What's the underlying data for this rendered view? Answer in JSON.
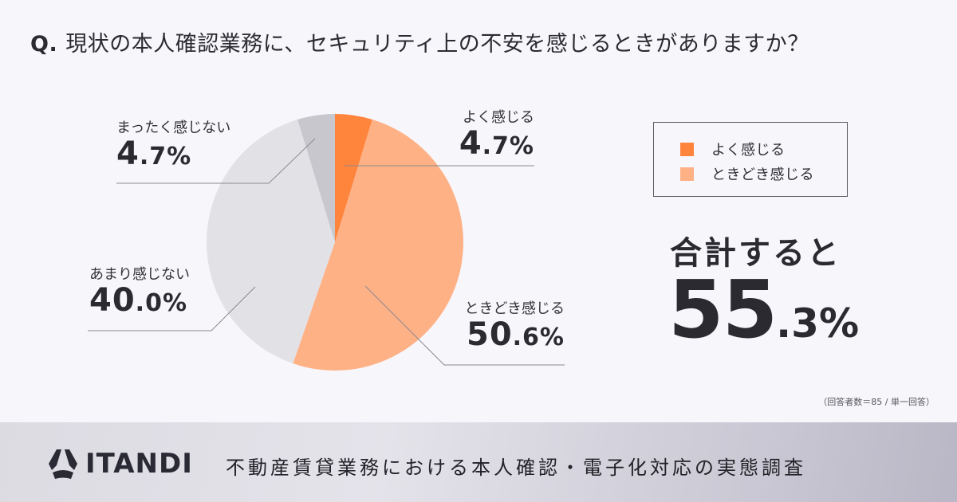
{
  "question": {
    "prefix": "Q.",
    "text": "現状の本人確認業務に、セキュリティ上の不安を感じるときがありますか？"
  },
  "chart_data": {
    "type": "pie",
    "title": "現状の本人確認業務に、セキュリティ上の不安を感じるときがありますか？",
    "categories": [
      "よく感じる",
      "ときどき感じる",
      "あまり感じない",
      "まったく感じない"
    ],
    "values": [
      4.7,
      50.6,
      40.0,
      4.7
    ],
    "colors": [
      "#ff843c",
      "#ffb186",
      "#e2e1e6",
      "#c8c7cd"
    ],
    "unit": "%",
    "start_angle": "12 o'clock, clockwise",
    "legend": [
      "よく感じる",
      "ときどき感じる"
    ],
    "annotation": "合計すると 55.3%",
    "sample_note": "（回答者数＝85 / 単一回答）"
  },
  "labels": {
    "often": {
      "name": "よく感じる",
      "int": "4",
      "dec": ".7%"
    },
    "sometimes": {
      "name": "ときどき感じる",
      "int": "50",
      "dec": ".6%"
    },
    "rarely": {
      "name": "あまり感じない",
      "int": "40",
      "dec": ".0%"
    },
    "never": {
      "name": "まったく感じない",
      "int": "4",
      "dec": ".7%"
    }
  },
  "legend": {
    "items": [
      {
        "label": "よく感じる",
        "color": "#ff843c"
      },
      {
        "label": "ときどき感じる",
        "color": "#ffb186"
      }
    ]
  },
  "total": {
    "label": "合計すると",
    "int": "55",
    "dec": ".3%"
  },
  "note": "（回答者数＝85 / 単一回答）",
  "footer": {
    "brand": "ITANDI",
    "title": "不動産賃貸業務における本人確認・電子化対応の実態調査"
  }
}
